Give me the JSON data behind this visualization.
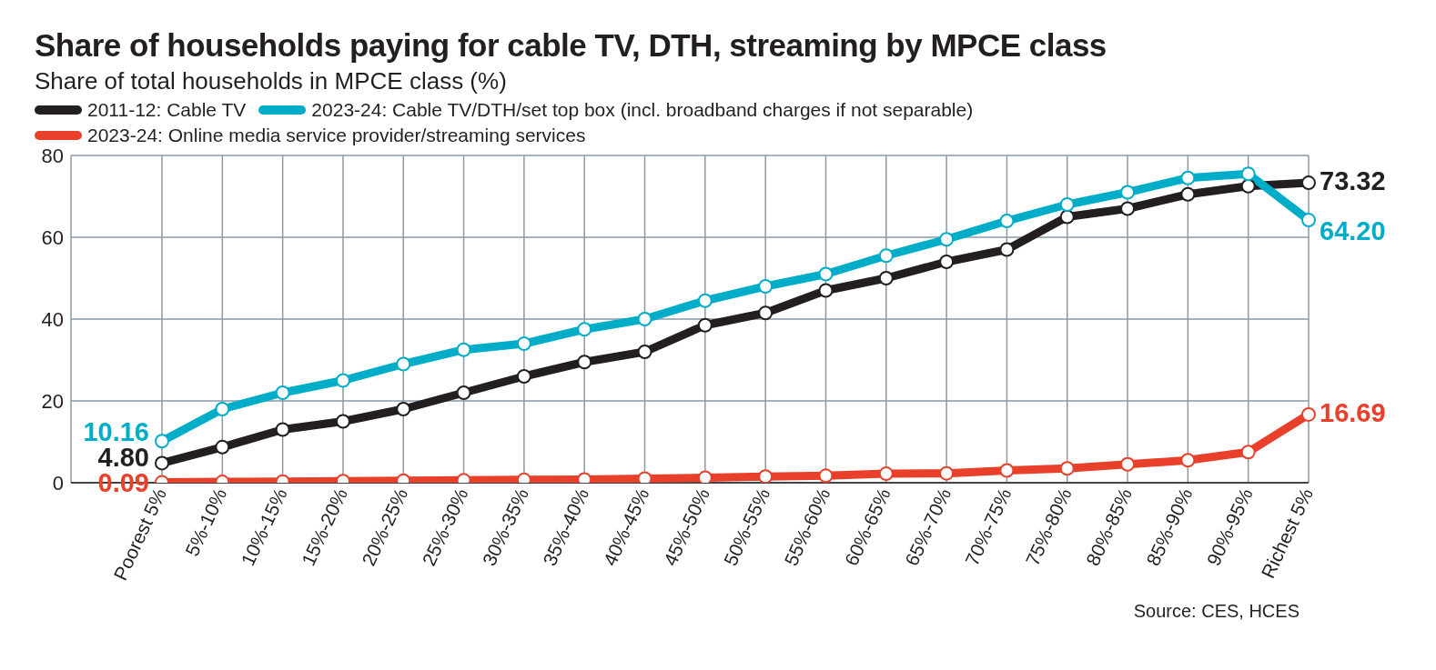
{
  "chart_data": {
    "type": "line",
    "title": "Share of households paying for cable TV, DTH, streaming by MPCE class",
    "subtitle": "Share of total households in MPCE class (%)",
    "categories": [
      "Poorest 5%",
      "5%-10%",
      "10%-15%",
      "15%-20%",
      "20%-25%",
      "25%-30%",
      "30%-35%",
      "35%-40%",
      "40%-45%",
      "45%-50%",
      "50%-55%",
      "55%-60%",
      "60%-65%",
      "65%-70%",
      "70%-75%",
      "75%-80%",
      "80%-85%",
      "85%-90%",
      "90%-95%",
      "Richest 5%"
    ],
    "series": [
      {
        "name": "2011-12: Cable TV",
        "color": "#231f20",
        "values": [
          4.8,
          8.7,
          13,
          15,
          18,
          22,
          26,
          29.5,
          32,
          38.5,
          41.5,
          47,
          50,
          54,
          57,
          65,
          67,
          70.5,
          72.5,
          73.32
        ],
        "value_labels": [
          "4.80",
          null,
          null,
          null,
          null,
          null,
          null,
          null,
          null,
          null,
          null,
          null,
          null,
          null,
          null,
          null,
          null,
          null,
          null,
          "73.32"
        ]
      },
      {
        "name": "2023-24: Cable TV/DTH/set top box (incl. broadband charges if not separable)",
        "color": "#00adc8",
        "values": [
          10.16,
          18,
          22,
          25,
          29,
          32.5,
          34,
          37.5,
          40,
          44.5,
          48,
          51,
          55.5,
          59.5,
          64,
          68,
          71,
          74.5,
          75.5,
          64.2
        ],
        "value_labels": [
          "10.16",
          null,
          null,
          null,
          null,
          null,
          null,
          null,
          null,
          null,
          null,
          null,
          null,
          null,
          null,
          null,
          null,
          null,
          null,
          "64.20"
        ]
      },
      {
        "name": "2023-24: Online media service provider/streaming services",
        "color": "#e8402a",
        "values": [
          0.09,
          0.2,
          0.3,
          0.4,
          0.5,
          0.6,
          0.7,
          0.8,
          1,
          1.2,
          1.5,
          1.7,
          2.2,
          2.3,
          3,
          3.5,
          4.5,
          5.5,
          7.5,
          16.69
        ],
        "value_labels": [
          "0.09",
          null,
          null,
          null,
          null,
          null,
          null,
          null,
          null,
          null,
          null,
          null,
          null,
          null,
          null,
          null,
          null,
          null,
          null,
          "16.69"
        ]
      }
    ],
    "ylim": [
      0,
      80
    ],
    "yticks": [
      0,
      20,
      40,
      60,
      80
    ],
    "grid": true,
    "legend": "top",
    "marker": "circle",
    "line_style": "solid",
    "annotations": [
      "Source: CES, HCES"
    ]
  }
}
